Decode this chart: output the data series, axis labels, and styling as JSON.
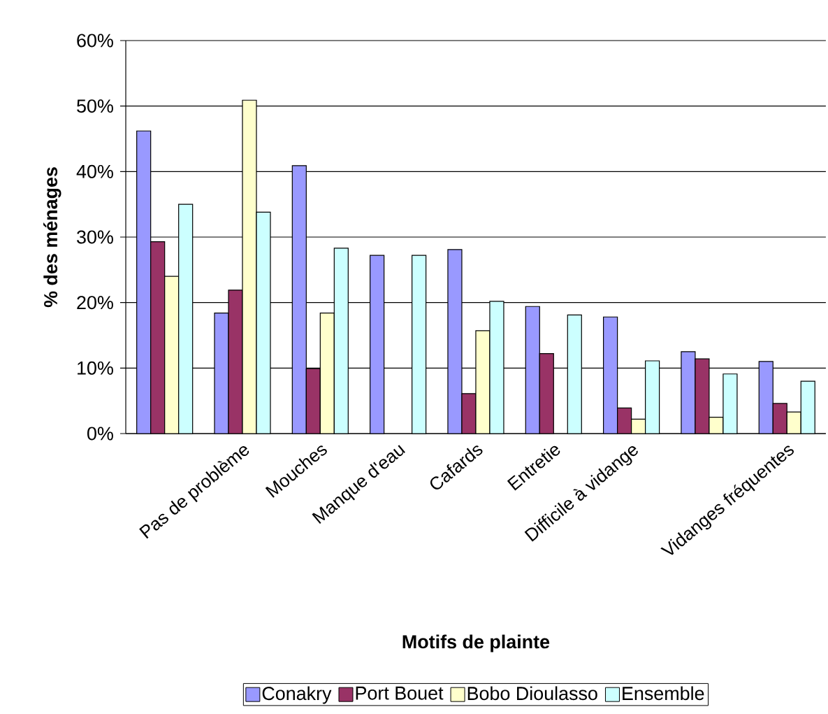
{
  "chart_data": {
    "type": "bar",
    "xlabel": "Motifs de plainte",
    "ylabel": "% des ménages",
    "categories": [
      null,
      "Pas de problème",
      "Mouches",
      "Manque d'eau",
      "Cafards",
      "Entretie",
      "Difficile à vidange",
      null,
      "Vidanges fréquentes"
    ],
    "series": [
      {
        "name": "Conakry",
        "color": "#9999ff",
        "values": [
          46.2,
          18.4,
          40.9,
          27.2,
          28.1,
          19.4,
          17.8,
          12.5,
          11.0
        ]
      },
      {
        "name": "Port Bouet",
        "color": "#993366",
        "values": [
          29.3,
          21.9,
          9.9,
          null,
          6.1,
          12.2,
          3.9,
          11.4,
          4.6
        ]
      },
      {
        "name": "Bobo Dioulasso",
        "color": "#ffffcc",
        "values": [
          24.0,
          50.9,
          18.4,
          null,
          15.7,
          null,
          2.2,
          2.5,
          3.3
        ]
      },
      {
        "name": "Ensemble",
        "color": "#ccffff",
        "values": [
          35.0,
          33.8,
          28.3,
          27.2,
          20.2,
          18.1,
          11.1,
          9.1,
          8.0
        ]
      }
    ],
    "ylim": [
      0,
      60
    ],
    "yticks": [
      {
        "value": 0,
        "label": "0%"
      },
      {
        "value": 10,
        "label": "10%"
      },
      {
        "value": 20,
        "label": "20%"
      },
      {
        "value": 30,
        "label": "30%"
      },
      {
        "value": 40,
        "label": "40%"
      },
      {
        "value": 50,
        "label": "50%"
      },
      {
        "value": 60,
        "label": "60%"
      }
    ],
    "grid": "y",
    "legend": "bottom"
  }
}
